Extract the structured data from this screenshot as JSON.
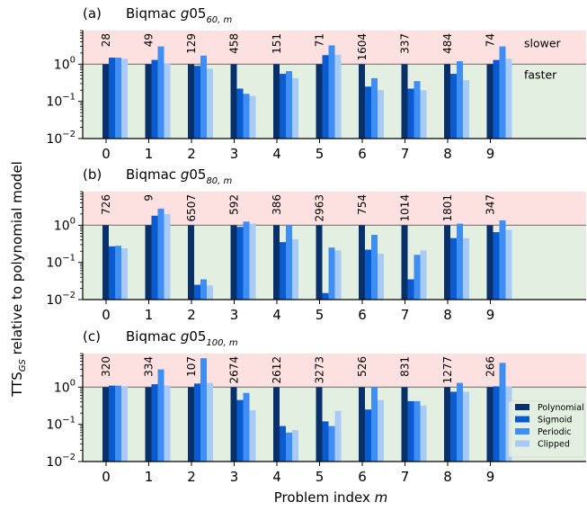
{
  "figure": {
    "ylabel_main": "TTS",
    "ylabel_sub": "GS",
    "ylabel_rest": " relative to polynomial model",
    "xlabel_main": "Problem index ",
    "xlabel_var": "m",
    "zone_labels": {
      "slower": "slower",
      "faster": "faster"
    },
    "colors": {
      "slower_zone": "#fde1e1",
      "faster_zone": "#e3efe0",
      "Polynomial": "#08306b",
      "Sigmoid": "#0b5bd0",
      "Periodic": "#3f8ef4",
      "Clipped": "#a8cbf6",
      "reference_line": "#7a7a7a"
    },
    "legend_position": "lower-right of panel (c)"
  },
  "chart_data": [
    {
      "type": "bar",
      "panel_label": "(a)",
      "title_text": "Biqmac ",
      "title_var": "g",
      "title_num": "05",
      "title_sub": "60, m",
      "categories": [
        "0",
        "1",
        "2",
        "3",
        "4",
        "5",
        "6",
        "7",
        "8",
        "9"
      ],
      "yscale": "log",
      "ylim": [
        0.01,
        8
      ],
      "yticks": [
        "10^-2",
        "10^-1",
        "10^0"
      ],
      "reference_line": 1.0,
      "series": [
        {
          "name": "Polynomial",
          "values": [
            1.0,
            1.0,
            1.0,
            1.0,
            1.0,
            1.0,
            1.0,
            1.0,
            1.0,
            1.0
          ]
        },
        {
          "name": "Sigmoid",
          "values": [
            1.5,
            1.3,
            0.9,
            0.22,
            0.55,
            1.75,
            0.25,
            0.22,
            0.55,
            1.3
          ]
        },
        {
          "name": "Periodic",
          "values": [
            1.5,
            3.0,
            1.7,
            0.16,
            0.65,
            3.2,
            0.42,
            0.35,
            1.2,
            3.0
          ]
        },
        {
          "name": "Clipped",
          "values": [
            1.4,
            1.05,
            0.75,
            0.14,
            0.42,
            1.8,
            0.2,
            0.2,
            0.37,
            1.4
          ]
        }
      ],
      "annotations": [
        "28",
        "49",
        "129",
        "458",
        "151",
        "71",
        "1604",
        "337",
        "484",
        "74"
      ],
      "show_zone_labels": true,
      "show_legend": false
    },
    {
      "type": "bar",
      "panel_label": "(b)",
      "title_text": "Biqmac ",
      "title_var": "g",
      "title_num": "05",
      "title_sub": "80, m",
      "categories": [
        "0",
        "1",
        "2",
        "3",
        "4",
        "5",
        "6",
        "7",
        "8",
        "9"
      ],
      "yscale": "log",
      "ylim": [
        0.01,
        8
      ],
      "yticks": [
        "10^-2",
        "10^-1",
        "10^0"
      ],
      "reference_line": 1.0,
      "series": [
        {
          "name": "Polynomial",
          "values": [
            1.0,
            1.0,
            1.0,
            1.0,
            1.0,
            1.0,
            1.0,
            1.0,
            1.0,
            1.0
          ]
        },
        {
          "name": "Sigmoid",
          "values": [
            0.27,
            1.8,
            0.025,
            0.9,
            0.35,
            0.015,
            0.22,
            0.035,
            0.45,
            0.65
          ]
        },
        {
          "name": "Periodic",
          "values": [
            0.28,
            2.8,
            0.035,
            1.25,
            1.0,
            0.25,
            0.55,
            0.16,
            1.1,
            1.35
          ]
        },
        {
          "name": "Clipped",
          "values": [
            0.24,
            2.0,
            0.024,
            1.1,
            0.42,
            0.21,
            0.17,
            0.21,
            0.45,
            0.75
          ]
        }
      ],
      "annotations": [
        "726",
        "9",
        "6507",
        "592",
        "386",
        "2963",
        "754",
        "1014",
        "1801",
        "347"
      ],
      "show_zone_labels": false,
      "show_legend": false
    },
    {
      "type": "bar",
      "panel_label": "(c)",
      "title_text": "Biqmac ",
      "title_var": "g",
      "title_num": "05",
      "title_sub": "100, m",
      "categories": [
        "0",
        "1",
        "2",
        "3",
        "4",
        "5",
        "6",
        "7",
        "8",
        "9"
      ],
      "yscale": "log",
      "ylim": [
        0.01,
        8
      ],
      "yticks": [
        "10^-2",
        "10^-1",
        "10^0"
      ],
      "reference_line": 1.0,
      "series": [
        {
          "name": "Polynomial",
          "values": [
            1.0,
            1.0,
            1.0,
            1.0,
            1.0,
            1.0,
            1.0,
            1.0,
            1.0,
            1.0
          ]
        },
        {
          "name": "Sigmoid",
          "values": [
            1.1,
            1.2,
            1.25,
            0.45,
            0.09,
            0.12,
            0.25,
            0.42,
            0.75,
            1.05
          ]
        },
        {
          "name": "Periodic",
          "values": [
            1.1,
            3.0,
            6.0,
            0.7,
            0.06,
            0.09,
            1.0,
            0.42,
            1.3,
            4.5
          ]
        },
        {
          "name": "Clipped",
          "values": [
            1.05,
            1.1,
            1.3,
            0.24,
            0.07,
            0.23,
            0.45,
            0.32,
            0.75,
            1.05
          ]
        }
      ],
      "annotations": [
        "320",
        "334",
        "107",
        "2674",
        "2612",
        "3273",
        "526",
        "831",
        "1277",
        "266"
      ],
      "show_zone_labels": false,
      "show_legend": true
    }
  ]
}
